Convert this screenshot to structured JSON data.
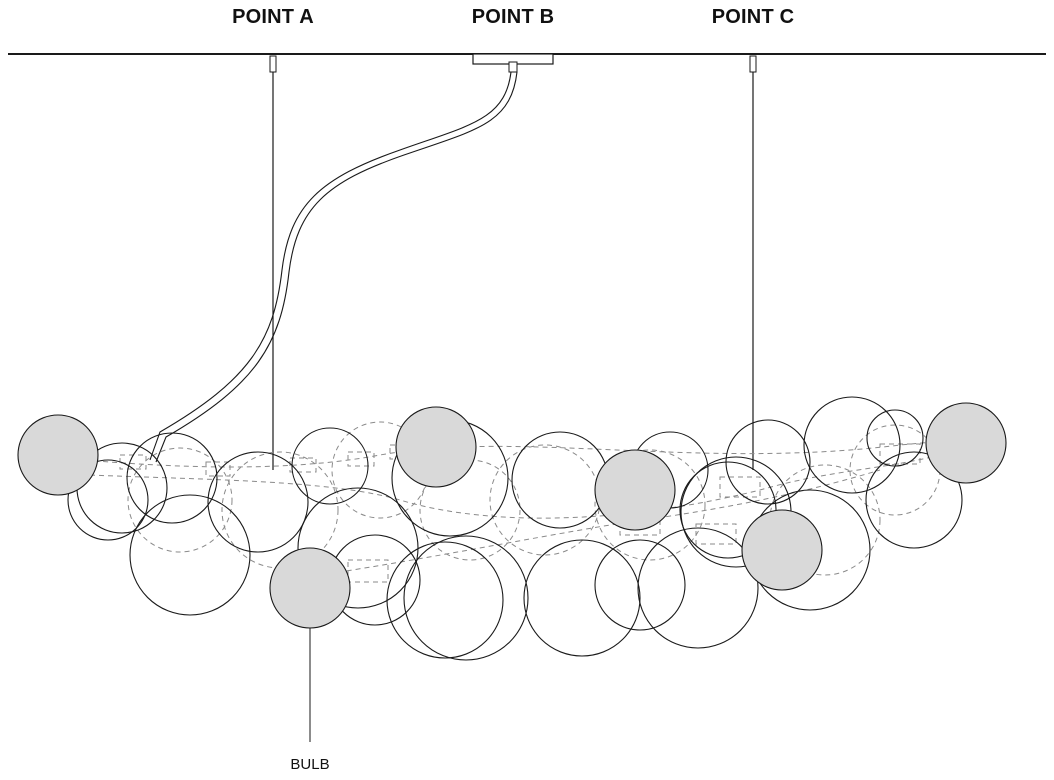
{
  "labels": {
    "point_a": "POINT A",
    "point_b": "POINT B",
    "point_c": "POINT C",
    "bulb": "BULB"
  },
  "colors": {
    "line": "#1a1a1a",
    "dashed": "#888888",
    "bulb_fill": "#d9d9d9",
    "background": "#ffffff"
  }
}
